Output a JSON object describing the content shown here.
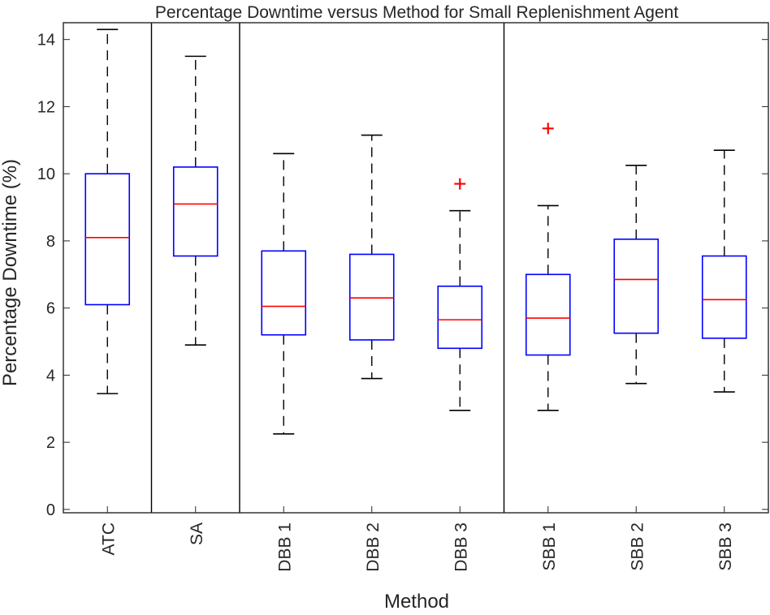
{
  "chart_data": {
    "type": "boxplot",
    "title": "Percentage Downtime versus Method for Small Replenishment Agent",
    "xlabel": "Method",
    "ylabel": "Percentage Downtime (%)",
    "ylim": [
      -0.1,
      14.5
    ],
    "yticks": [
      0,
      2,
      4,
      6,
      8,
      10,
      12,
      14
    ],
    "grid": false,
    "group_separators_after": [
      "ATC",
      "SA",
      "DBB 3"
    ],
    "colors": {
      "box": "#0000ff",
      "median": "#ff0000",
      "whisker": "#000000",
      "outlier": "#ff0000",
      "axes": "#262626"
    },
    "categories": [
      "ATC",
      "SA",
      "DBB 1",
      "DBB 2",
      "DBB 3",
      "SBB 1",
      "SBB 2",
      "SBB 3"
    ],
    "boxes": [
      {
        "label": "ATC",
        "whisker_low": 3.45,
        "q1": 6.1,
        "median": 8.1,
        "q3": 10.0,
        "whisker_high": 14.3,
        "outliers": []
      },
      {
        "label": "SA",
        "whisker_low": 4.9,
        "q1": 7.55,
        "median": 9.1,
        "q3": 10.2,
        "whisker_high": 13.5,
        "outliers": []
      },
      {
        "label": "DBB 1",
        "whisker_low": 2.25,
        "q1": 5.2,
        "median": 6.05,
        "q3": 7.7,
        "whisker_high": 10.6,
        "outliers": []
      },
      {
        "label": "DBB 2",
        "whisker_low": 3.9,
        "q1": 5.05,
        "median": 6.3,
        "q3": 7.6,
        "whisker_high": 11.15,
        "outliers": []
      },
      {
        "label": "DBB 3",
        "whisker_low": 2.95,
        "q1": 4.8,
        "median": 5.65,
        "q3": 6.65,
        "whisker_high": 8.9,
        "outliers": [
          9.7
        ]
      },
      {
        "label": "SBB 1",
        "whisker_low": 2.95,
        "q1": 4.6,
        "median": 5.7,
        "q3": 7.0,
        "whisker_high": 9.05,
        "outliers": [
          11.35
        ]
      },
      {
        "label": "SBB 2",
        "whisker_low": 3.75,
        "q1": 5.25,
        "median": 6.85,
        "q3": 8.05,
        "whisker_high": 10.25,
        "outliers": []
      },
      {
        "label": "SBB 3",
        "whisker_low": 3.5,
        "q1": 5.1,
        "median": 6.25,
        "q3": 7.55,
        "whisker_high": 10.7,
        "outliers": []
      }
    ]
  }
}
